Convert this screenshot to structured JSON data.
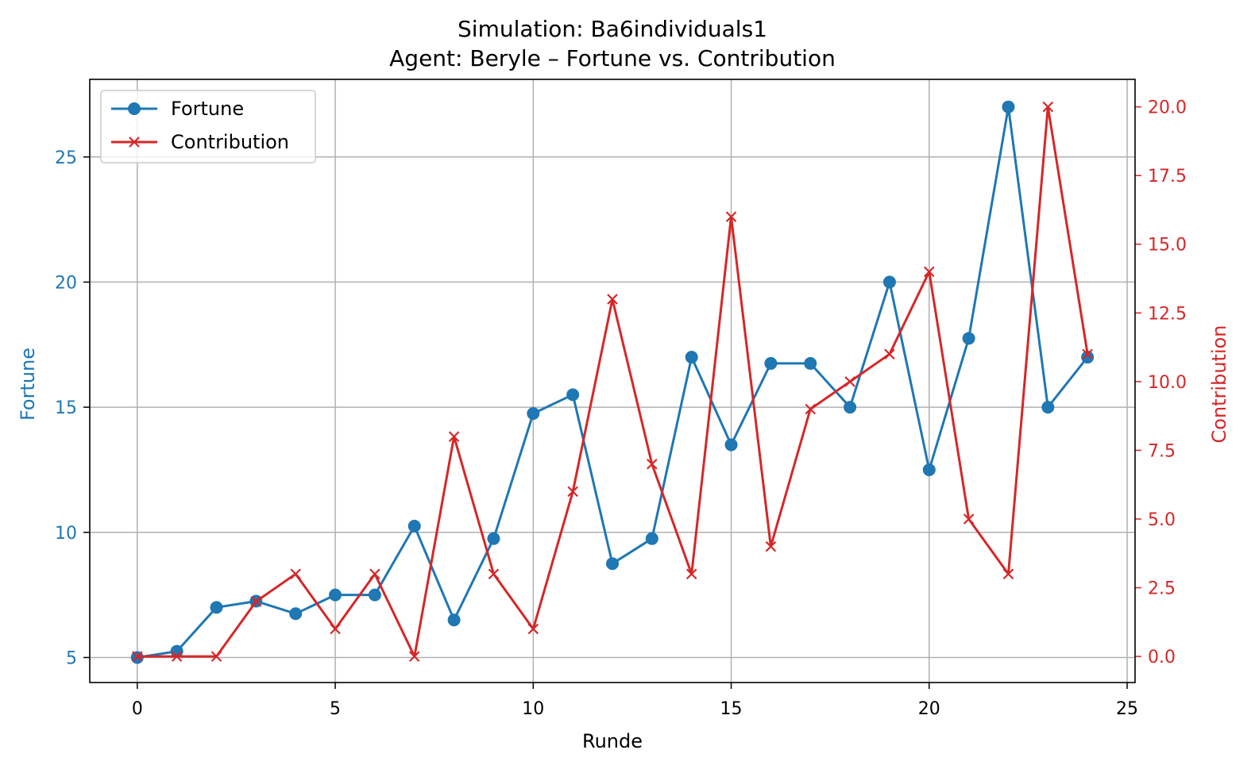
{
  "chart_data": {
    "type": "line",
    "title": "Simulation: Ba6individuals1",
    "subtitle": "Agent: Beryle – Fortune vs. Contribution",
    "xlabel": "Runde",
    "ylabel_left": "Fortune",
    "ylabel_right": "Contribution",
    "xlim": [
      -1.2,
      25.2
    ],
    "ylim_left": [
      4.0,
      28.1
    ],
    "ylim_right": [
      -0.95,
      21.0
    ],
    "x_ticks": [
      "0",
      "5",
      "10",
      "15",
      "20",
      "25"
    ],
    "y_left_ticks": [
      "5",
      "10",
      "15",
      "20",
      "25"
    ],
    "y_right_ticks": [
      "0.0",
      "2.5",
      "5.0",
      "7.5",
      "10.0",
      "12.5",
      "15.0",
      "17.5",
      "20.0"
    ],
    "grid": true,
    "legend_position": "upper-left",
    "x": [
      0,
      1,
      2,
      3,
      4,
      5,
      6,
      7,
      8,
      9,
      10,
      11,
      12,
      13,
      14,
      15,
      16,
      17,
      18,
      19,
      20,
      21,
      22,
      23,
      24
    ],
    "series": [
      {
        "name": "Fortune",
        "axis": "left",
        "color": "#1f77b4",
        "marker": "circle",
        "values": [
          5,
          5.25,
          7,
          7.25,
          6.75,
          7.5,
          7.5,
          10.25,
          6.5,
          9.75,
          14.75,
          15.5,
          8.75,
          9.75,
          17,
          13.5,
          16.75,
          16.75,
          15,
          20,
          12.5,
          17.75,
          27,
          15,
          17
        ]
      },
      {
        "name": "Contribution",
        "axis": "right",
        "color": "#d62728",
        "marker": "x",
        "values": [
          0,
          0,
          0,
          2,
          3,
          1,
          3,
          0,
          8,
          3,
          1,
          6,
          13,
          7,
          3,
          16,
          4,
          9,
          10,
          11,
          14,
          5,
          3,
          20,
          11
        ]
      }
    ]
  }
}
